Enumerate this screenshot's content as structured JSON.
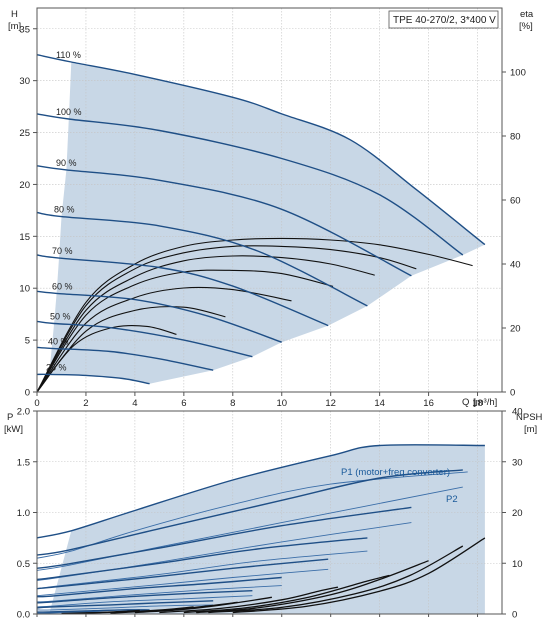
{
  "chart_data": [
    {
      "type": "line",
      "title": "TPE 40-270/2, 3*400 V",
      "xlabel": "Q",
      "xunit": "[m³/h]",
      "ylabel": "H",
      "yunit": "[m]",
      "y2label": "eta",
      "y2unit": "[%]",
      "xlim": [
        0,
        19
      ],
      "ylim": [
        0,
        37
      ],
      "y2lim": [
        0,
        120
      ],
      "xticks": [
        "0",
        "2",
        "4",
        "6",
        "8",
        "10",
        "12",
        "14",
        "16",
        "18"
      ],
      "yticks": [
        "0",
        "5",
        "10",
        "15",
        "20",
        "25",
        "30",
        "35"
      ],
      "y2ticks": [
        "0",
        "20",
        "40",
        "60",
        "80",
        "100"
      ],
      "grid": true,
      "shaded_region": true,
      "speed_curves": [
        {
          "name": "110 %",
          "x": [
            0,
            1.4,
            4,
            8,
            10,
            12.8,
            15.5,
            18.3
          ],
          "y": [
            32.5,
            31.8,
            30.6,
            28.4,
            26.8,
            24.3,
            19.5,
            14.2
          ]
        },
        {
          "name": "100 %",
          "x": [
            0,
            1.3,
            5,
            10,
            14,
            17.4
          ],
          "y": [
            26.8,
            26.3,
            25.2,
            22.5,
            19.0,
            13.2
          ]
        },
        {
          "name": "90 %",
          "x": [
            0,
            1.2,
            5,
            10,
            15.3
          ],
          "y": [
            21.8,
            21.4,
            20.4,
            17.6,
            11.2
          ]
        },
        {
          "name": "80 %",
          "x": [
            0,
            1.0,
            5,
            9,
            13.5
          ],
          "y": [
            17.3,
            16.9,
            16.0,
            13.6,
            8.3
          ]
        },
        {
          "name": "70 %",
          "x": [
            0,
            0.9,
            5,
            8,
            11.9
          ],
          "y": [
            13.2,
            12.9,
            12.0,
            10.2,
            6.4
          ]
        },
        {
          "name": "60 %",
          "x": [
            0,
            0.8,
            4,
            7,
            10.0
          ],
          "y": [
            9.7,
            9.5,
            8.9,
            7.3,
            4.8
          ]
        },
        {
          "name": "50 %",
          "x": [
            0,
            0.7,
            3,
            6,
            8.8
          ],
          "y": [
            6.8,
            6.6,
            6.2,
            5.0,
            3.4
          ]
        },
        {
          "name": "40 %",
          "x": [
            0,
            0.6,
            3,
            5,
            7.2
          ],
          "y": [
            4.3,
            4.2,
            3.9,
            3.2,
            2.1
          ]
        },
        {
          "name": "25 %",
          "x": [
            0,
            0.5,
            2,
            3.5,
            4.6
          ],
          "y": [
            1.7,
            1.7,
            1.6,
            1.3,
            0.8
          ]
        }
      ],
      "efficiency_curves": [
        {
          "x": [
            0,
            2,
            4,
            6,
            8,
            10,
            12,
            14,
            16,
            17.8
          ],
          "y": [
            0,
            28,
            40,
            45.5,
            47.5,
            48,
            47.5,
            46,
            43,
            39.5
          ]
        },
        {
          "x": [
            0,
            2,
            4,
            6,
            8,
            10,
            12,
            14,
            15.5
          ],
          "y": [
            0,
            27,
            38.5,
            43.5,
            45.5,
            45.5,
            44.5,
            42,
            38.5
          ]
        },
        {
          "x": [
            0,
            2,
            4,
            6,
            8,
            10,
            12,
            13.8
          ],
          "y": [
            0,
            25.5,
            36,
            41,
            42.5,
            42,
            40,
            36.5
          ]
        },
        {
          "x": [
            0,
            2,
            4,
            6,
            8,
            10,
            12.1
          ],
          "y": [
            0,
            24,
            33.5,
            37.5,
            38,
            37,
            33
          ]
        },
        {
          "x": [
            0,
            2,
            4,
            6,
            8,
            10.4
          ],
          "y": [
            0,
            21.5,
            29.5,
            32.5,
            32,
            28.5
          ]
        },
        {
          "x": [
            0,
            2,
            4,
            6,
            7.7
          ],
          "y": [
            0,
            19,
            25.5,
            26.5,
            23.5
          ]
        },
        {
          "x": [
            0,
            1.5,
            3,
            4.5,
            5.7
          ],
          "y": [
            0,
            14.5,
            20,
            20.5,
            18
          ]
        }
      ]
    },
    {
      "type": "line",
      "xlabel": "Q",
      "xunit": "[m³/h]",
      "ylabel": "P",
      "yunit": "[kW]",
      "y2label": "NPSH",
      "y2unit": "[m]",
      "xlim": [
        0,
        19
      ],
      "ylim": [
        0,
        2.0
      ],
      "y2lim": [
        0,
        40
      ],
      "yticks": [
        "0.0",
        "0.5",
        "1.0",
        "1.5",
        "2.0"
      ],
      "y2ticks": [
        "0",
        "10",
        "20",
        "30",
        "40"
      ],
      "grid": true,
      "series_labels": [
        "P1 (motor+freq.converter)",
        "P2"
      ],
      "p1_curves": [
        {
          "x": [
            0,
            1.4,
            4,
            8,
            12,
            14,
            18.3
          ],
          "y": [
            0.75,
            0.82,
            1.02,
            1.32,
            1.56,
            1.66,
            1.66
          ]
        },
        {
          "x": [
            0,
            1.3,
            5,
            10,
            14,
            17.4
          ],
          "y": [
            0.58,
            0.63,
            0.84,
            1.12,
            1.34,
            1.42
          ]
        },
        {
          "x": [
            0,
            1.2,
            5,
            10,
            15.3
          ],
          "y": [
            0.45,
            0.49,
            0.65,
            0.87,
            1.05
          ]
        },
        {
          "x": [
            0,
            1.0,
            5,
            9,
            13.5
          ],
          "y": [
            0.34,
            0.37,
            0.5,
            0.64,
            0.75
          ]
        },
        {
          "x": [
            0,
            0.9,
            5,
            8,
            11.9
          ],
          "y": [
            0.25,
            0.27,
            0.37,
            0.45,
            0.54
          ]
        },
        {
          "x": [
            0,
            0.8,
            4,
            7,
            10.0
          ],
          "y": [
            0.17,
            0.18,
            0.25,
            0.3,
            0.36
          ]
        },
        {
          "x": [
            0,
            0.7,
            3,
            6,
            8.8
          ],
          "y": [
            0.11,
            0.12,
            0.16,
            0.2,
            0.23
          ]
        },
        {
          "x": [
            0,
            0.6,
            3,
            5,
            7.2
          ],
          "y": [
            0.06,
            0.07,
            0.09,
            0.11,
            0.13
          ]
        },
        {
          "x": [
            0,
            0.5,
            2,
            3.5,
            4.6
          ],
          "y": [
            0.02,
            0.02,
            0.03,
            0.04,
            0.04
          ]
        }
      ],
      "p2_curves": [
        {
          "x": [
            0,
            1.4,
            4,
            8,
            12,
            17.6
          ],
          "y": [
            0.55,
            0.62,
            0.82,
            1.08,
            1.28,
            1.4
          ]
        },
        {
          "x": [
            0,
            1.3,
            5,
            10,
            17.4
          ],
          "y": [
            0.43,
            0.48,
            0.66,
            0.9,
            1.25
          ]
        },
        {
          "x": [
            0,
            1.2,
            5,
            10,
            15.3
          ],
          "y": [
            0.33,
            0.37,
            0.51,
            0.71,
            0.9
          ]
        },
        {
          "x": [
            0,
            1.0,
            5,
            9,
            13.5
          ],
          "y": [
            0.25,
            0.28,
            0.39,
            0.52,
            0.62
          ]
        },
        {
          "x": [
            0,
            0.9,
            5,
            8,
            11.9
          ],
          "y": [
            0.18,
            0.2,
            0.29,
            0.36,
            0.44
          ]
        },
        {
          "x": [
            0,
            0.8,
            4,
            7,
            10.0
          ],
          "y": [
            0.12,
            0.13,
            0.19,
            0.24,
            0.28
          ]
        },
        {
          "x": [
            0,
            0.7,
            3,
            6,
            8.8
          ],
          "y": [
            0.07,
            0.08,
            0.12,
            0.15,
            0.18
          ]
        },
        {
          "x": [
            0,
            0.6,
            3,
            5,
            7.2
          ],
          "y": [
            0.04,
            0.04,
            0.06,
            0.08,
            0.09
          ]
        },
        {
          "x": [
            0,
            0.5,
            2,
            3.5,
            4.6
          ],
          "y": [
            0.01,
            0.01,
            0.02,
            0.02,
            0.03
          ]
        }
      ],
      "npsh_curves": [
        {
          "x": [
            8,
            11,
            14,
            16,
            18.3
          ],
          "y": [
            0.3,
            1.5,
            4.5,
            8,
            15
          ]
        },
        {
          "x": [
            7,
            10,
            13,
            15.2,
            17.4
          ],
          "y": [
            0.3,
            1.3,
            4,
            7.5,
            13.4
          ]
        },
        {
          "x": [
            6.5,
            9,
            12,
            14,
            16
          ],
          "y": [
            0.3,
            1.2,
            3.8,
            6.8,
            10.5
          ]
        },
        {
          "x": [
            6,
            8.5,
            11,
            13.5,
            14.4
          ],
          "y": [
            0.3,
            1.2,
            3.2,
            6.5,
            7.6
          ]
        },
        {
          "x": [
            5,
            7.5,
            10,
            11.5,
            12.3
          ],
          "y": [
            0.3,
            1.1,
            2.8,
            4.5,
            5.3
          ]
        },
        {
          "x": [
            4,
            6,
            8,
            9.6
          ],
          "y": [
            0.3,
            0.9,
            2.1,
            3.3
          ]
        },
        {
          "x": [
            3,
            5,
            7,
            8.2
          ],
          "y": [
            0.2,
            0.7,
            1.6,
            2.3
          ]
        },
        {
          "x": [
            2,
            4,
            5.6,
            6.4
          ],
          "y": [
            0.2,
            0.5,
            1.0,
            1.4
          ]
        },
        {
          "x": [
            1,
            2.5,
            3.8,
            4.2
          ],
          "y": [
            0.1,
            0.3,
            0.6,
            0.7
          ]
        }
      ]
    }
  ]
}
